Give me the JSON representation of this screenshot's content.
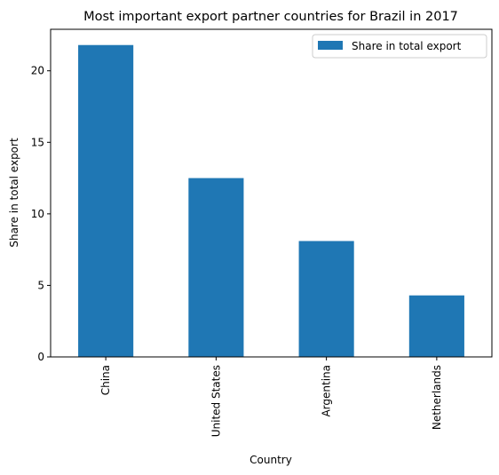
{
  "chart_data": {
    "type": "bar",
    "title": "Most important export partner countries for Brazil in 2017",
    "xlabel": "Country",
    "ylabel": "Share in total export",
    "categories": [
      "China",
      "United States",
      "Argentina",
      "Netherlands"
    ],
    "series": [
      {
        "name": "Share in total export",
        "values": [
          21.8,
          12.5,
          8.1,
          4.3
        ],
        "color": "#1f77b4"
      }
    ],
    "ylim": [
      0,
      22.9
    ],
    "yticks": [
      0,
      5,
      10,
      15,
      20
    ],
    "grid": false,
    "legend": "top-right"
  }
}
